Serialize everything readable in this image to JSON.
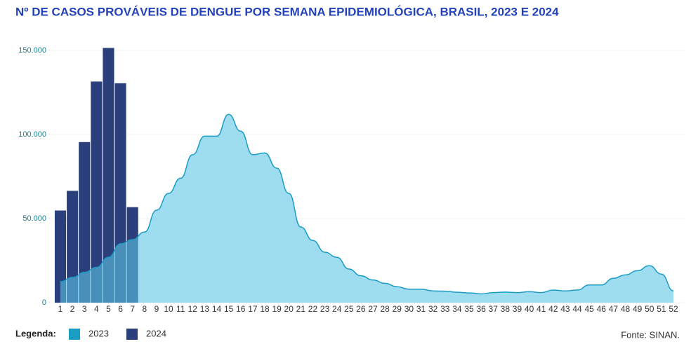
{
  "chart_data": {
    "type": "bar_area",
    "title": "Nº DE CASOS PROVÁVEIS DE DENGUE POR SEMANA EPIDEMIOLÓGICA, BRASIL, 2023 E 2024",
    "categories": [
      "1",
      "2",
      "3",
      "4",
      "5",
      "6",
      "7",
      "8",
      "9",
      "10",
      "11",
      "12",
      "13",
      "14",
      "15",
      "16",
      "17",
      "18",
      "19",
      "20",
      "21",
      "22",
      "23",
      "24",
      "25",
      "26",
      "27",
      "28",
      "29",
      "30",
      "31",
      "32",
      "33",
      "34",
      "35",
      "36",
      "37",
      "38",
      "39",
      "40",
      "41",
      "42",
      "43",
      "44",
      "45",
      "46",
      "47",
      "48",
      "49",
      "50",
      "51",
      "52"
    ],
    "series": [
      {
        "name": "2023",
        "type": "area",
        "color": "#1a9cc4",
        "values": [
          12500,
          15000,
          18000,
          21000,
          27000,
          35000,
          37500,
          42000,
          55000,
          65000,
          74000,
          88000,
          99000,
          99000,
          112000,
          102000,
          88000,
          89000,
          80000,
          65000,
          45000,
          37000,
          30000,
          27000,
          20000,
          16000,
          13500,
          11500,
          9500,
          8000,
          8000,
          7000,
          6800,
          6200,
          5800,
          5200,
          6000,
          6300,
          6000,
          6500,
          6000,
          7500,
          7000,
          7500,
          10500,
          10500,
          14500,
          16500,
          19000,
          22000,
          17000,
          7000
        ]
      },
      {
        "name": "2024",
        "type": "bar",
        "color": "#2b3f7c",
        "values": [
          54800,
          66500,
          95500,
          131500,
          151500,
          130500,
          56800,
          null,
          null,
          null,
          null,
          null,
          null,
          null,
          null,
          null,
          null,
          null,
          null,
          null,
          null,
          null,
          null,
          null,
          null,
          null,
          null,
          null,
          null,
          null,
          null,
          null,
          null,
          null,
          null,
          null,
          null,
          null,
          null,
          null,
          null,
          null,
          null,
          null,
          null,
          null,
          null,
          null,
          null,
          null,
          null,
          null
        ]
      }
    ],
    "ylim": [
      0,
      150000
    ],
    "yticks": [
      0,
      {
        "value": 50000,
        "label": "50.000"
      },
      {
        "value": 100000,
        "label": "100.000"
      },
      {
        "value": 150000,
        "label": "150.000"
      }
    ],
    "grid": true,
    "legend_title": "Legenda:",
    "source": "Fonte: SINAN."
  }
}
